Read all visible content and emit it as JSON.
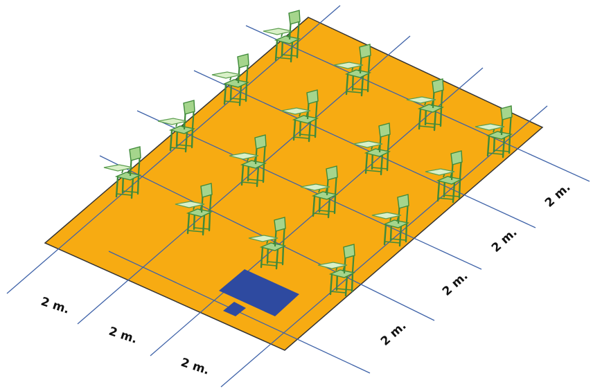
{
  "colors": {
    "floor": "#f7ab12",
    "floor_outline": "#333333",
    "grid_line": "#3e62a8",
    "desk": "#2e4aa0",
    "chair_seat": "#a5d58c",
    "chair_frame": "#3f8a3a"
  },
  "icons": {
    "chair": "student-chair-with-writing-arm",
    "desk": "teacher-desk"
  },
  "dimension_labels": {
    "front": [
      "2 m.",
      "2 m.",
      "2 m."
    ],
    "side": [
      "2 m.",
      "2 m.",
      "2 m.",
      "2 m."
    ]
  }
}
